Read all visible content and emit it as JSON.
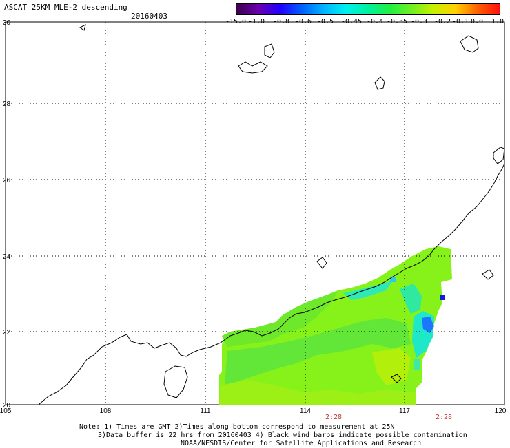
{
  "header": {
    "title": "ASCAT 25KM MLE-2 descending",
    "date": "20160403"
  },
  "colorbar": {
    "labels": [
      "-15.0",
      "-1.0",
      "-0.8",
      "-0.6",
      "-0.5",
      "-0.45",
      "-0.4",
      "-0.35",
      "-0.3",
      "-0.2",
      "-0.1",
      "0.0",
      "1.0"
    ],
    "colors": [
      "#3b004a",
      "#6a00b0",
      "#2200ff",
      "#0060ff",
      "#00b4ff",
      "#00f0f0",
      "#00f0a0",
      "#20f040",
      "#70f020",
      "#c8f000",
      "#ffd000",
      "#ff6000",
      "#ff1010"
    ]
  },
  "map": {
    "lon_ticks": [
      "105",
      "108",
      "111",
      "114",
      "117",
      "120"
    ],
    "lat_ticks": [
      "30",
      "28",
      "26",
      "24",
      "22",
      "20"
    ],
    "lon_range": [
      105,
      120
    ],
    "lat_range": [
      20,
      30
    ],
    "gridlines": "dotted"
  },
  "time_labels": [
    "2:28",
    "2:28"
  ],
  "notes": {
    "line1": "Note: 1) Times are GMT 2)Times along bottom correspond to measurement at 25N",
    "line2": "3)Data buffer is 22 hrs from 20160403 4) Black wind barbs indicate possible contamination",
    "line3": "NOAA/NESDIS/Center for Satellite Applications and Research"
  }
}
